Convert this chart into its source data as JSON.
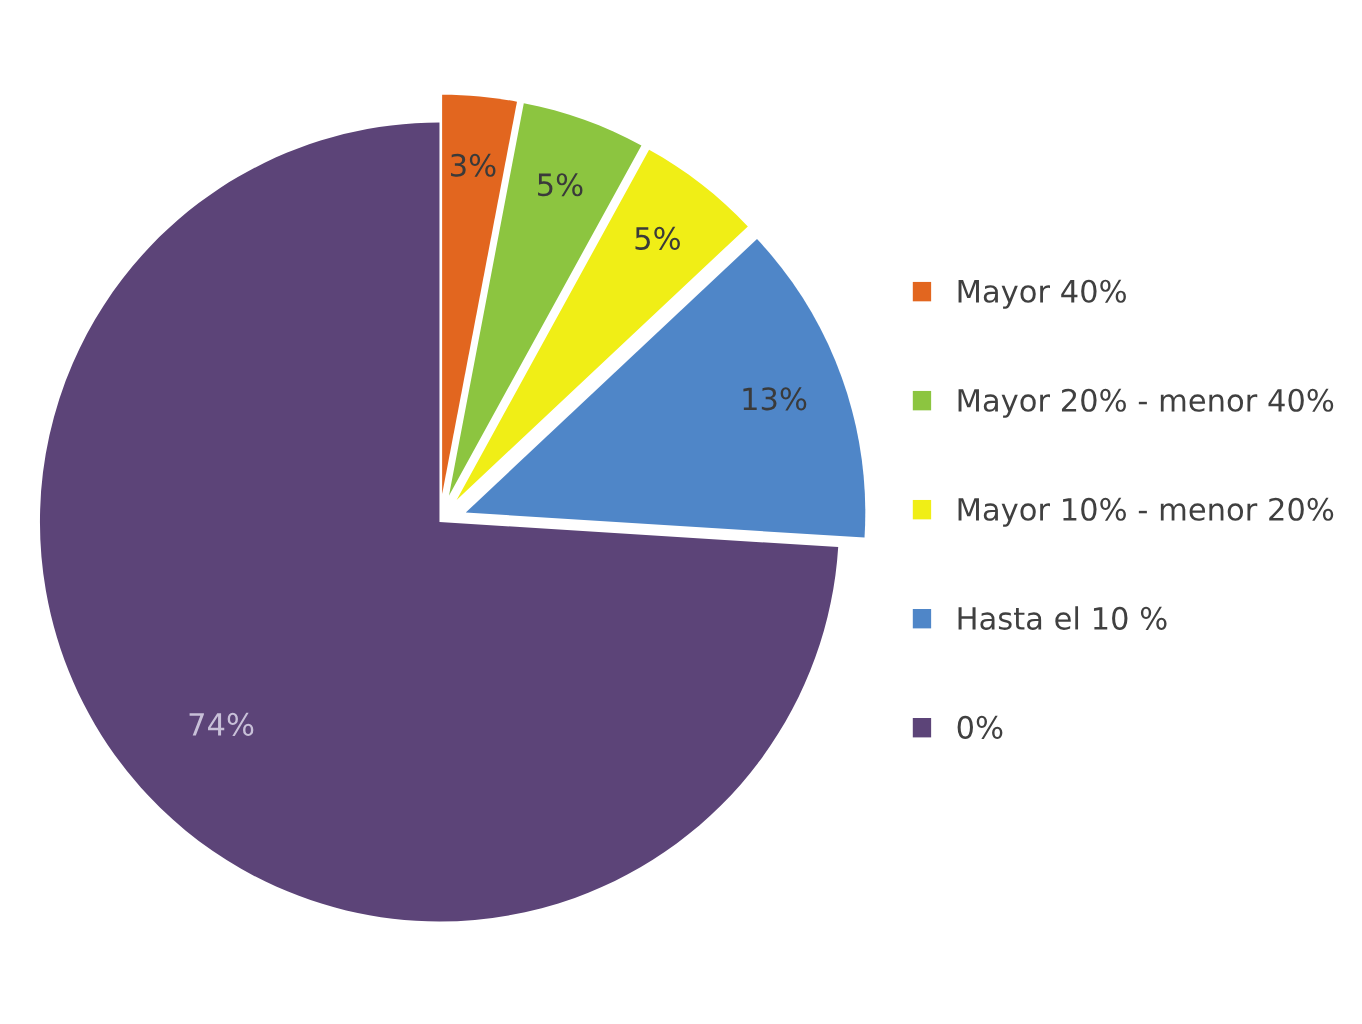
{
  "chart_data": {
    "type": "pie",
    "categories": [
      "Mayor 40%",
      "Mayor 20% - menor 40%",
      "Mayor 10% - menor 20%",
      "Hasta el 10 %",
      "0%"
    ],
    "values": [
      3,
      5,
      5,
      13,
      74
    ],
    "value_labels": [
      "3%",
      "5%",
      "5%",
      "13%",
      "74%"
    ],
    "colors": [
      "#e2661f",
      "#8cc540",
      "#f0ee16",
      "#4f86c8",
      "#5c4478"
    ],
    "legend": "right"
  }
}
